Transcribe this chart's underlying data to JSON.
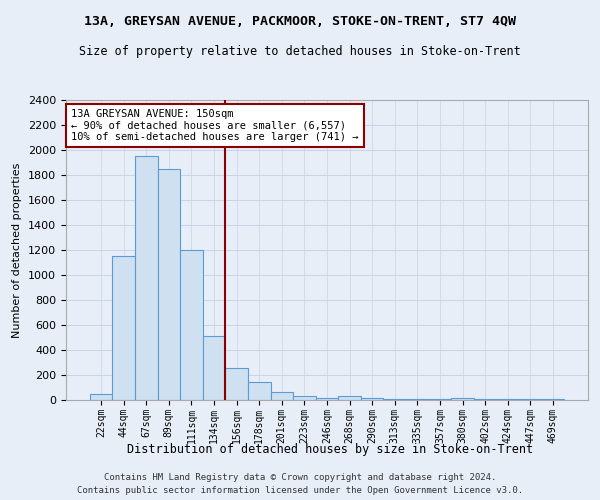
{
  "title_line1": "13A, GREYSAN AVENUE, PACKMOOR, STOKE-ON-TRENT, ST7 4QW",
  "title_line2": "Size of property relative to detached houses in Stoke-on-Trent",
  "xlabel": "Distribution of detached houses by size in Stoke-on-Trent",
  "ylabel": "Number of detached properties",
  "footnote1": "Contains HM Land Registry data © Crown copyright and database right 2024.",
  "footnote2": "Contains public sector information licensed under the Open Government Licence v3.0.",
  "annotation_title": "13A GREYSAN AVENUE: 150sqm",
  "annotation_line2": "← 90% of detached houses are smaller (6,557)",
  "annotation_line3": "10% of semi-detached houses are larger (741) →",
  "bar_edge_color": "#5b9bd5",
  "bar_face_color": "#cfe0f0",
  "vline_color": "#8b0000",
  "annotation_box_color": "#ffffff",
  "annotation_box_edge": "#8b0000",
  "grid_color": "#c8d4e8",
  "bg_color": "#e8eef8",
  "categories": [
    "22sqm",
    "44sqm",
    "67sqm",
    "89sqm",
    "111sqm",
    "134sqm",
    "156sqm",
    "178sqm",
    "201sqm",
    "223sqm",
    "246sqm",
    "268sqm",
    "290sqm",
    "313sqm",
    "335sqm",
    "357sqm",
    "380sqm",
    "402sqm",
    "424sqm",
    "447sqm",
    "469sqm"
  ],
  "values": [
    50,
    1150,
    1950,
    1850,
    1200,
    510,
    260,
    145,
    65,
    35,
    20,
    30,
    20,
    10,
    5,
    5,
    15,
    10,
    5,
    5,
    5
  ],
  "ylim": [
    0,
    2400
  ],
  "yticks": [
    0,
    200,
    400,
    600,
    800,
    1000,
    1200,
    1400,
    1600,
    1800,
    2000,
    2200,
    2400
  ],
  "vline_x": 5.5
}
